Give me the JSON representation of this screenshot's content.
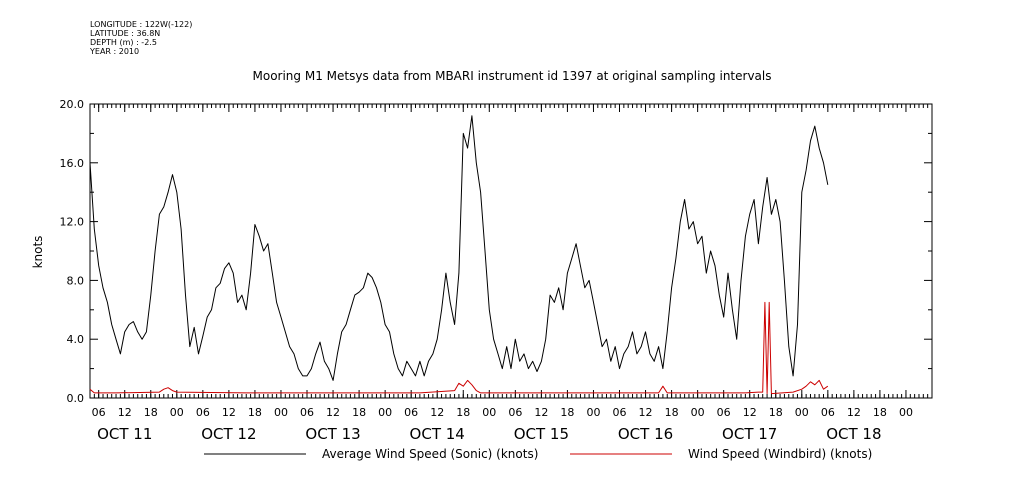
{
  "header": {
    "longitude": "LONGITUDE : 122W(-122)",
    "latitude": "LATITUDE : 36.8N",
    "depth": "DEPTH (m) : -2.5",
    "year": "YEAR : 2010"
  },
  "chart_data": {
    "type": "line",
    "title": "Mooring M1 Metsys data from MBARI instrument id 1397 at original sampling intervals",
    "ylabel": "knots",
    "xlabel": "",
    "ylim": [
      0,
      20
    ],
    "yticks": [
      "0.0",
      "4.0",
      "8.0",
      "12.0",
      "16.0",
      "20.0"
    ],
    "xlim_hours": [
      4,
      198
    ],
    "hour_ticks": [
      {
        "h": 6,
        "label": "06"
      },
      {
        "h": 12,
        "label": "12"
      },
      {
        "h": 18,
        "label": "18"
      },
      {
        "h": 24,
        "label": "00"
      },
      {
        "h": 30,
        "label": "06"
      },
      {
        "h": 36,
        "label": "12"
      },
      {
        "h": 42,
        "label": "18"
      },
      {
        "h": 48,
        "label": "00"
      },
      {
        "h": 54,
        "label": "06"
      },
      {
        "h": 60,
        "label": "12"
      },
      {
        "h": 66,
        "label": "18"
      },
      {
        "h": 72,
        "label": "00"
      },
      {
        "h": 78,
        "label": "06"
      },
      {
        "h": 84,
        "label": "12"
      },
      {
        "h": 90,
        "label": "18"
      },
      {
        "h": 96,
        "label": "00"
      },
      {
        "h": 102,
        "label": "06"
      },
      {
        "h": 108,
        "label": "12"
      },
      {
        "h": 114,
        "label": "18"
      },
      {
        "h": 120,
        "label": "00"
      },
      {
        "h": 126,
        "label": "06"
      },
      {
        "h": 132,
        "label": "12"
      },
      {
        "h": 138,
        "label": "18"
      },
      {
        "h": 144,
        "label": "00"
      },
      {
        "h": 150,
        "label": "06"
      },
      {
        "h": 156,
        "label": "12"
      },
      {
        "h": 162,
        "label": "18"
      },
      {
        "h": 168,
        "label": "00"
      },
      {
        "h": 174,
        "label": "06"
      },
      {
        "h": 180,
        "label": "12"
      },
      {
        "h": 186,
        "label": "18"
      },
      {
        "h": 192,
        "label": "00"
      }
    ],
    "day_labels": [
      {
        "h": 12,
        "label": "OCT 11"
      },
      {
        "h": 36,
        "label": "OCT 12"
      },
      {
        "h": 60,
        "label": "OCT 13"
      },
      {
        "h": 84,
        "label": "OCT 14"
      },
      {
        "h": 108,
        "label": "OCT 15"
      },
      {
        "h": 132,
        "label": "OCT 16"
      },
      {
        "h": 156,
        "label": "OCT 17"
      },
      {
        "h": 180,
        "label": "OCT 18"
      }
    ],
    "series": [
      {
        "name": "Average Wind Speed (Sonic) (knots)",
        "color": "#000000",
        "points": [
          [
            4,
            16.0
          ],
          [
            5,
            11.5
          ],
          [
            6,
            9.0
          ],
          [
            7,
            7.5
          ],
          [
            8,
            6.5
          ],
          [
            9,
            5.0
          ],
          [
            10,
            4.0
          ],
          [
            11,
            3.0
          ],
          [
            12,
            4.5
          ],
          [
            13,
            5.0
          ],
          [
            14,
            5.2
          ],
          [
            15,
            4.5
          ],
          [
            16,
            4.0
          ],
          [
            17,
            4.5
          ],
          [
            18,
            7.0
          ],
          [
            19,
            10.0
          ],
          [
            20,
            12.5
          ],
          [
            21,
            13.0
          ],
          [
            22,
            14.0
          ],
          [
            23,
            15.2
          ],
          [
            24,
            14.0
          ],
          [
            25,
            11.5
          ],
          [
            26,
            7.0
          ],
          [
            27,
            3.5
          ],
          [
            28,
            4.8
          ],
          [
            29,
            3.0
          ],
          [
            30,
            4.2
          ],
          [
            31,
            5.5
          ],
          [
            32,
            6.0
          ],
          [
            33,
            7.5
          ],
          [
            34,
            7.8
          ],
          [
            35,
            8.8
          ],
          [
            36,
            9.2
          ],
          [
            37,
            8.5
          ],
          [
            38,
            6.5
          ],
          [
            39,
            7.0
          ],
          [
            40,
            6.0
          ],
          [
            41,
            8.5
          ],
          [
            42,
            11.8
          ],
          [
            43,
            11.0
          ],
          [
            44,
            10.0
          ],
          [
            45,
            10.5
          ],
          [
            46,
            8.5
          ],
          [
            47,
            6.5
          ],
          [
            48,
            5.5
          ],
          [
            49,
            4.5
          ],
          [
            50,
            3.5
          ],
          [
            51,
            3.0
          ],
          [
            52,
            2.0
          ],
          [
            53,
            1.5
          ],
          [
            54,
            1.5
          ],
          [
            55,
            2.0
          ],
          [
            56,
            3.0
          ],
          [
            57,
            3.8
          ],
          [
            58,
            2.5
          ],
          [
            59,
            2.0
          ],
          [
            60,
            1.2
          ],
          [
            61,
            3.0
          ],
          [
            62,
            4.5
          ],
          [
            63,
            5.0
          ],
          [
            64,
            6.0
          ],
          [
            65,
            7.0
          ],
          [
            66,
            7.2
          ],
          [
            67,
            7.5
          ],
          [
            68,
            8.5
          ],
          [
            69,
            8.2
          ],
          [
            70,
            7.5
          ],
          [
            71,
            6.5
          ],
          [
            72,
            5.0
          ],
          [
            73,
            4.5
          ],
          [
            74,
            3.0
          ],
          [
            75,
            2.0
          ],
          [
            76,
            1.5
          ],
          [
            77,
            2.5
          ],
          [
            78,
            2.0
          ],
          [
            79,
            1.5
          ],
          [
            80,
            2.5
          ],
          [
            81,
            1.5
          ],
          [
            82,
            2.5
          ],
          [
            83,
            3.0
          ],
          [
            84,
            4.0
          ],
          [
            85,
            6.0
          ],
          [
            86,
            8.5
          ],
          [
            87,
            6.5
          ],
          [
            88,
            5.0
          ],
          [
            89,
            8.5
          ],
          [
            90,
            18.0
          ],
          [
            91,
            17.0
          ],
          [
            92,
            19.2
          ],
          [
            93,
            16.0
          ],
          [
            94,
            14.0
          ],
          [
            95,
            10.0
          ],
          [
            96,
            6.0
          ],
          [
            97,
            4.0
          ],
          [
            98,
            3.0
          ],
          [
            99,
            2.0
          ],
          [
            100,
            3.5
          ],
          [
            101,
            2.0
          ],
          [
            102,
            4.0
          ],
          [
            103,
            2.5
          ],
          [
            104,
            3.0
          ],
          [
            105,
            2.0
          ],
          [
            106,
            2.5
          ],
          [
            107,
            1.8
          ],
          [
            108,
            2.5
          ],
          [
            109,
            4.0
          ],
          [
            110,
            7.0
          ],
          [
            111,
            6.5
          ],
          [
            112,
            7.5
          ],
          [
            113,
            6.0
          ],
          [
            114,
            8.5
          ],
          [
            115,
            9.5
          ],
          [
            116,
            10.5
          ],
          [
            117,
            9.0
          ],
          [
            118,
            7.5
          ],
          [
            119,
            8.0
          ],
          [
            120,
            6.5
          ],
          [
            121,
            5.0
          ],
          [
            122,
            3.5
          ],
          [
            123,
            4.0
          ],
          [
            124,
            2.5
          ],
          [
            125,
            3.5
          ],
          [
            126,
            2.0
          ],
          [
            127,
            3.0
          ],
          [
            128,
            3.5
          ],
          [
            129,
            4.5
          ],
          [
            130,
            3.0
          ],
          [
            131,
            3.5
          ],
          [
            132,
            4.5
          ],
          [
            133,
            3.0
          ],
          [
            134,
            2.5
          ],
          [
            135,
            3.5
          ],
          [
            136,
            2.0
          ],
          [
            137,
            4.5
          ],
          [
            138,
            7.5
          ],
          [
            139,
            9.5
          ],
          [
            140,
            12.0
          ],
          [
            141,
            13.5
          ],
          [
            142,
            11.5
          ],
          [
            143,
            12.0
          ],
          [
            144,
            10.5
          ],
          [
            145,
            11.0
          ],
          [
            146,
            8.5
          ],
          [
            147,
            10.0
          ],
          [
            148,
            9.0
          ],
          [
            149,
            7.0
          ],
          [
            150,
            5.5
          ],
          [
            151,
            8.5
          ],
          [
            152,
            6.0
          ],
          [
            153,
            4.0
          ],
          [
            154,
            8.0
          ],
          [
            155,
            11.0
          ],
          [
            156,
            12.5
          ],
          [
            157,
            13.5
          ],
          [
            158,
            10.5
          ],
          [
            159,
            13.0
          ],
          [
            160,
            15.0
          ],
          [
            161,
            12.5
          ],
          [
            162,
            13.5
          ],
          [
            163,
            12.0
          ],
          [
            164,
            8.0
          ],
          [
            165,
            3.5
          ],
          [
            166,
            1.5
          ],
          [
            167,
            5.0
          ],
          [
            168,
            14.0
          ],
          [
            169,
            15.5
          ],
          [
            170,
            17.5
          ],
          [
            171,
            18.5
          ],
          [
            172,
            17.0
          ],
          [
            173,
            16.0
          ],
          [
            174,
            14.5
          ]
        ]
      },
      {
        "name": "Wind Speed (Windbird) (knots)",
        "color": "#cc0000",
        "points": [
          [
            4,
            0.6
          ],
          [
            5,
            0.35
          ],
          [
            10,
            0.35
          ],
          [
            20,
            0.4
          ],
          [
            21,
            0.6
          ],
          [
            22,
            0.7
          ],
          [
            23,
            0.5
          ],
          [
            24,
            0.4
          ],
          [
            40,
            0.35
          ],
          [
            60,
            0.35
          ],
          [
            80,
            0.35
          ],
          [
            88,
            0.5
          ],
          [
            89,
            1.0
          ],
          [
            90,
            0.8
          ],
          [
            91,
            1.2
          ],
          [
            92,
            0.9
          ],
          [
            93,
            0.5
          ],
          [
            94,
            0.35
          ],
          [
            120,
            0.35
          ],
          [
            135,
            0.35
          ],
          [
            136,
            0.8
          ],
          [
            137,
            0.35
          ],
          [
            155,
            0.35
          ],
          [
            158,
            0.4
          ],
          [
            159,
            0.4
          ],
          [
            159.5,
            6.5
          ],
          [
            160,
            0.3
          ],
          [
            160.5,
            6.5
          ],
          [
            161,
            0.3
          ],
          [
            166,
            0.4
          ],
          [
            168,
            0.6
          ],
          [
            169,
            0.8
          ],
          [
            170,
            1.1
          ],
          [
            171,
            0.9
          ],
          [
            172,
            1.2
          ],
          [
            173,
            0.6
          ],
          [
            174,
            0.8
          ]
        ]
      }
    ],
    "legend": [
      {
        "label": "Average Wind Speed (Sonic) (knots)",
        "color": "#000000"
      },
      {
        "label": "Wind Speed (Windbird) (knots)",
        "color": "#cc0000"
      }
    ]
  }
}
